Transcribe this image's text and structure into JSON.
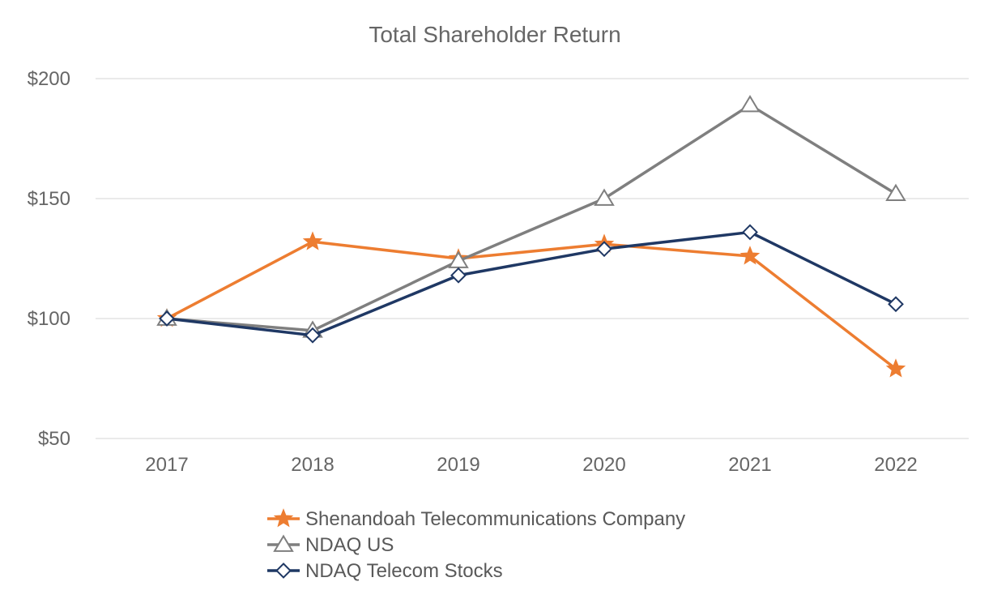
{
  "chart_data": {
    "type": "line",
    "title": "Total Shareholder Return",
    "xlabel": "",
    "ylabel": "",
    "categories": [
      "2017",
      "2018",
      "2019",
      "2020",
      "2021",
      "2022"
    ],
    "ylim": [
      50,
      200
    ],
    "yticks": [
      50,
      100,
      150,
      200
    ],
    "ytick_labels": [
      "$50",
      "$100",
      "$150",
      "$200"
    ],
    "grid": true,
    "legend_position": "bottom",
    "series": [
      {
        "name": "Shenandoah Telecommunications Company",
        "values": [
          100,
          132,
          125,
          131,
          126,
          79
        ],
        "color": "#ED7D31",
        "marker": "star"
      },
      {
        "name": "NDAQ US",
        "values": [
          100,
          95,
          124,
          150,
          189,
          152
        ],
        "color": "#7F7F7F",
        "marker": "triangle"
      },
      {
        "name": "NDAQ Telecom Stocks",
        "values": [
          100,
          93,
          118,
          129,
          136,
          106
        ],
        "color": "#1F3864",
        "marker": "diamond"
      }
    ]
  }
}
